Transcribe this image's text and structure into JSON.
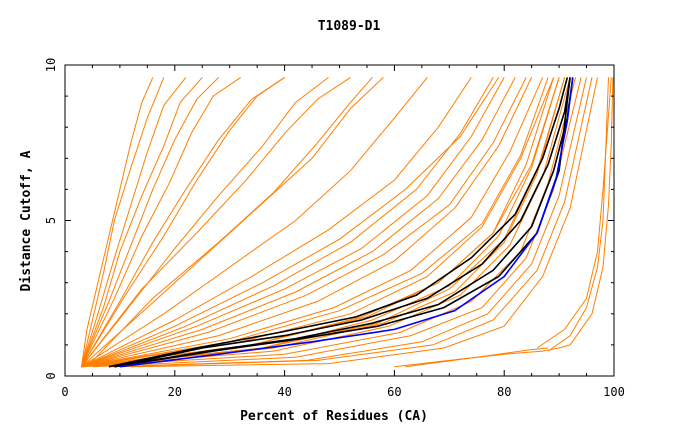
{
  "chart_data": {
    "type": "line",
    "title": "T1089-D1",
    "xlabel": "Percent of Residues (CA)",
    "ylabel": "Distance Cutoff, A",
    "xlim": [
      0,
      100
    ],
    "ylim": [
      0,
      10
    ],
    "x_ticks": [
      0,
      20,
      40,
      60,
      80,
      100
    ],
    "y_ticks": [
      0,
      5,
      10
    ],
    "grid": false,
    "colors": {
      "bulk": "#ff7f00",
      "highlight": "#000000",
      "reference": "#0000ff"
    },
    "series_groups": [
      {
        "group": "bulk",
        "color": "#ff7f00",
        "series": [
          {
            "x": [
              3,
              4,
              6,
              8,
              10,
              12,
              14,
              16
            ],
            "y": [
              0.3,
              1.5,
              3,
              4.5,
              6,
              7.5,
              8.8,
              9.6
            ]
          },
          {
            "x": [
              3,
              5,
              7,
              9,
              12,
              15,
              18
            ],
            "y": [
              0.3,
              1.8,
              3.3,
              5,
              6.7,
              8.3,
              9.6
            ]
          },
          {
            "x": [
              3,
              6,
              9,
              12,
              15,
              18,
              22
            ],
            "y": [
              0.3,
              2,
              3.8,
              5.5,
              7.2,
              8.7,
              9.6
            ]
          },
          {
            "x": [
              3,
              7,
              10,
              14,
              18,
              21,
              25
            ],
            "y": [
              0.3,
              2.2,
              4,
              5.8,
              7.4,
              8.8,
              9.6
            ]
          },
          {
            "x": [
              3,
              8,
              12,
              16,
              20,
              24,
              28
            ],
            "y": [
              0.3,
              2.4,
              4.2,
              6,
              7.6,
              8.9,
              9.6
            ]
          },
          {
            "x": [
              3,
              9,
              14,
              19,
              23,
              27,
              32
            ],
            "y": [
              0.3,
              2.5,
              4.5,
              6.2,
              7.8,
              9,
              9.6
            ]
          },
          {
            "x": [
              3,
              10,
              16,
              22,
              28,
              34,
              40
            ],
            "y": [
              0.3,
              2.4,
              4.3,
              6,
              7.6,
              8.9,
              9.6
            ]
          },
          {
            "x": [
              3,
              12,
              20,
              28,
              36,
              42,
              48
            ],
            "y": [
              0.3,
              2.3,
              4.1,
              5.8,
              7.4,
              8.8,
              9.6
            ]
          },
          {
            "x": [
              3,
              15,
              25,
              35,
              45,
              52,
              58
            ],
            "y": [
              0.3,
              2.2,
              3.8,
              5.4,
              7,
              8.6,
              9.6
            ]
          },
          {
            "x": [
              3,
              18,
              30,
              42,
              52,
              60,
              66
            ],
            "y": [
              0.3,
              2,
              3.5,
              5,
              6.6,
              8.3,
              9.6
            ]
          },
          {
            "x": [
              3,
              20,
              34,
              48,
              60,
              68,
              74
            ],
            "y": [
              0.3,
              1.8,
              3.2,
              4.7,
              6.3,
              8,
              9.6
            ]
          },
          {
            "x": [
              3,
              22,
              38,
              52,
              64,
              72,
              78
            ],
            "y": [
              0.3,
              1.6,
              2.9,
              4.3,
              6,
              7.8,
              9.6
            ]
          },
          {
            "x": [
              3,
              25,
              42,
              56,
              68,
              76,
              82
            ],
            "y": [
              0.3,
              1.5,
              2.7,
              4,
              5.7,
              7.6,
              9.6
            ]
          },
          {
            "x": [
              3,
              28,
              46,
              60,
              71,
              79,
              85
            ],
            "y": [
              0.3,
              1.3,
              2.4,
              3.7,
              5.4,
              7.4,
              9.6
            ]
          },
          {
            "x": [
              3,
              30,
              49,
              63,
              74,
              81,
              87
            ],
            "y": [
              0.3,
              1.2,
              2.2,
              3.4,
              5.1,
              7.2,
              9.6
            ]
          },
          {
            "x": [
              3,
              32,
              52,
              66,
              76,
              83,
              89
            ],
            "y": [
              0.3,
              1.1,
              2,
              3.2,
              4.8,
              7,
              9.6
            ]
          },
          {
            "x": [
              3,
              34,
              55,
              68,
              78,
              85,
              90
            ],
            "y": [
              0.3,
              1,
              1.9,
              3,
              4.6,
              6.8,
              9.6
            ]
          },
          {
            "x": [
              3,
              36,
              57,
              70,
              80,
              86,
              91
            ],
            "y": [
              0.3,
              0.9,
              1.7,
              2.8,
              4.4,
              6.6,
              9.6
            ]
          },
          {
            "x": [
              3,
              38,
              59,
              72,
              81,
              87,
              92
            ],
            "y": [
              0.3,
              0.8,
              1.6,
              2.6,
              4.2,
              6.4,
              9.6
            ]
          },
          {
            "x": [
              3,
              40,
              61,
              74,
              83,
              88,
              93
            ],
            "y": [
              0.3,
              0.7,
              1.4,
              2.4,
              4,
              6.2,
              9.6
            ]
          },
          {
            "x": [
              5,
              42,
              63,
              76,
              84,
              89,
              94
            ],
            "y": [
              0.3,
              0.6,
              1.3,
              2.2,
              3.8,
              6,
              9.6
            ]
          },
          {
            "x": [
              8,
              44,
              65,
              77,
              85,
              90,
              95
            ],
            "y": [
              0.3,
              0.5,
              1.1,
              2,
              3.6,
              5.8,
              9.6
            ]
          },
          {
            "x": [
              10,
              46,
              67,
              78,
              86,
              91,
              96
            ],
            "y": [
              0.3,
              0.5,
              1,
              1.8,
              3.4,
              5.6,
              9.6
            ]
          },
          {
            "x": [
              12,
              48,
              69,
              80,
              87,
              92,
              97
            ],
            "y": [
              0.3,
              0.4,
              0.9,
              1.6,
              3.2,
              5.4,
              9.6
            ]
          },
          {
            "x": [
              3,
              26,
              44,
              58,
              70,
              78,
              84
            ],
            "y": [
              0.3,
              1.4,
              2.6,
              3.9,
              5.5,
              7.5,
              9.6
            ]
          },
          {
            "x": [
              3,
              24,
              40,
              54,
              66,
              74,
              80
            ],
            "y": [
              0.3,
              1.6,
              2.8,
              4.1,
              5.8,
              7.7,
              9.6
            ]
          },
          {
            "x": [
              3,
              14,
              24,
              33,
              40,
              46,
              52
            ],
            "y": [
              0.3,
              2.8,
              4.6,
              6.3,
              7.8,
              8.9,
              9.6
            ]
          },
          {
            "x": [
              3,
              11,
              18,
              24,
              30,
              35,
              40
            ],
            "y": [
              0.3,
              2.6,
              4.5,
              6.3,
              7.9,
              9,
              9.6
            ]
          },
          {
            "x": [
              4,
              16,
              28,
              38,
              46,
              52,
              56
            ],
            "y": [
              0.3,
              2.5,
              4.3,
              5.9,
              7.5,
              8.8,
              9.6
            ]
          },
          {
            "x": [
              3,
              20,
              36,
              50,
              62,
              72,
              79
            ],
            "y": [
              0.3,
              1.6,
              3,
              4.4,
              6,
              7.7,
              9.6
            ]
          },
          {
            "x": [
              3,
              34,
              54,
              68,
              78,
              84,
              89
            ],
            "y": [
              0.3,
              1,
              1.9,
              3,
              4.6,
              6.8,
              9.6
            ]
          },
          {
            "x": [
              3,
              36,
              56,
              70,
              79,
              85,
              90
            ],
            "y": [
              0.3,
              0.9,
              1.8,
              2.9,
              4.5,
              6.7,
              9.6
            ]
          },
          {
            "x": [
              3,
              38,
              58,
              71,
              80,
              86,
              91
            ],
            "y": [
              0.3,
              0.9,
              1.7,
              2.7,
              4.3,
              6.5,
              9.6
            ]
          },
          {
            "x": [
              3,
              30,
              50,
              65,
              76,
              83,
              88
            ],
            "y": [
              0.3,
              1.1,
              2.1,
              3.3,
              4.9,
              7.1,
              9.6
            ]
          },
          {
            "x": [
              60,
              70,
              80,
              87,
              90,
              92
            ],
            "y": [
              0.3,
              0.5,
              0.7,
              0.8,
              0.9,
              1
            ]
          },
          {
            "x": [
              62,
              75,
              85,
              88
            ],
            "y": [
              0.3,
              0.6,
              0.85,
              0.9
            ]
          },
          {
            "x": [
              88,
              92,
              95,
              97,
              98,
              99
            ],
            "y": [
              0.8,
              1.3,
              2.2,
              3.5,
              5,
              9.6
            ]
          },
          {
            "x": [
              86,
              91,
              95,
              97,
              98,
              99.5
            ],
            "y": [
              0.9,
              1.5,
              2.5,
              4,
              6,
              9.6
            ]
          },
          {
            "x": [
              92,
              96,
              98,
              99,
              99.5,
              99.8
            ],
            "y": [
              1,
              2,
              3.5,
              5.5,
              7.5,
              9.6
            ]
          }
        ]
      },
      {
        "group": "highlight",
        "color": "#000000",
        "series": [
          {
            "x": [
              9,
              25,
              40,
              54,
              66,
              76,
              83,
              88,
              91,
              92
            ],
            "y": [
              0.3,
              0.9,
              1.3,
              1.8,
              2.5,
              3.6,
              5,
              6.8,
              8.5,
              9.6
            ]
          },
          {
            "x": [
              9,
              26,
              42,
              56,
              68,
              78,
              85,
              89,
              91.5,
              92.5
            ],
            "y": [
              0.3,
              0.8,
              1.2,
              1.7,
              2.3,
              3.4,
              4.8,
              6.6,
              8.3,
              9.6
            ]
          },
          {
            "x": [
              8,
              24,
              39,
              53,
              64,
              74,
              82,
              87,
              90,
              91.5
            ],
            "y": [
              0.3,
              0.9,
              1.4,
              1.9,
              2.6,
              3.8,
              5.2,
              7,
              8.6,
              9.6
            ]
          },
          {
            "x": [
              9,
              27,
              43,
              57,
              69,
              79,
              86,
              90,
              92
            ],
            "y": [
              0.3,
              0.8,
              1.2,
              1.6,
              2.2,
              3.2,
              4.6,
              6.6,
              9.6
            ]
          }
        ]
      },
      {
        "group": "reference",
        "color": "#0000ff",
        "series": [
          {
            "x": [
              10,
              28,
              45,
              60,
              71,
              80,
              86,
              89.5,
              91.5,
              92.5
            ],
            "y": [
              0.3,
              0.7,
              1.1,
              1.5,
              2.1,
              3.2,
              4.6,
              6.4,
              8.2,
              9.6
            ]
          }
        ]
      }
    ]
  }
}
